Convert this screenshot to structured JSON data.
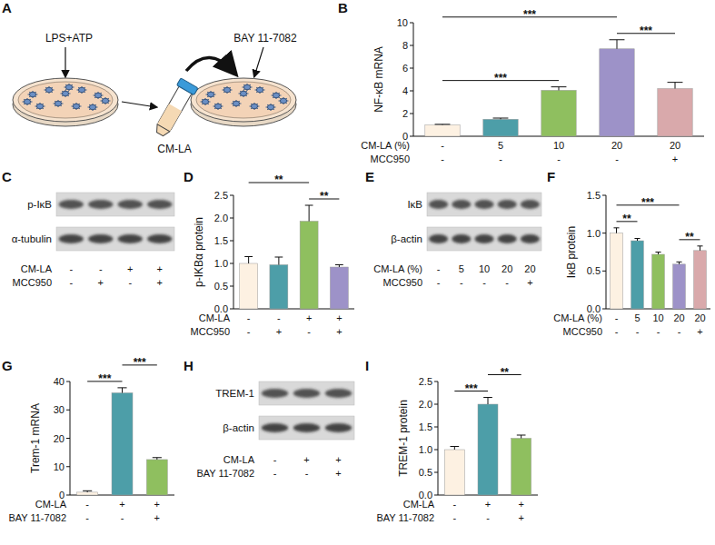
{
  "diagram": {
    "panel": "A",
    "labels": {
      "stimulus": "LPS+ATP",
      "medium": "CM-LA",
      "inhibitor": "BAY 11-7082"
    }
  },
  "blots": [
    {
      "panel": "C",
      "bands": [
        "p-IκB",
        "α-tubulin"
      ],
      "conditions": [
        {
          "name": "CM-LA",
          "labels": [
            "-",
            "-",
            "+",
            "+"
          ]
        },
        {
          "name": "MCC950",
          "labels": [
            "-",
            "+",
            "-",
            "+"
          ]
        }
      ]
    },
    {
      "panel": "E",
      "bands": [
        "IκB",
        "β-actin"
      ],
      "conditions": [
        {
          "name": "CM-LA (%)",
          "labels": [
            "-",
            "5",
            "10",
            "20",
            "20"
          ]
        },
        {
          "name": "MCC950",
          "labels": [
            "-",
            "-",
            "-",
            "-",
            "+"
          ]
        }
      ]
    },
    {
      "panel": "H",
      "bands": [
        "TREM-1",
        "β-actin"
      ],
      "conditions": [
        {
          "name": "CM-LA",
          "labels": [
            "-",
            "+",
            "+"
          ]
        },
        {
          "name": "BAY 11-7082",
          "labels": [
            "-",
            "-",
            "+"
          ]
        }
      ]
    }
  ],
  "chart_data": [
    {
      "panel": "B",
      "type": "bar",
      "y_label": "NF-κB mRNA",
      "ylim": [
        0,
        10
      ],
      "yticks": [
        0,
        2,
        4,
        6,
        8,
        10
      ],
      "values": [
        1.0,
        1.5,
        4.05,
        7.7,
        4.2
      ],
      "errors": [
        0.05,
        0.1,
        0.3,
        0.8,
        0.55
      ],
      "colors": [
        "#fdf1e2",
        "#4d9ea8",
        "#8fbf5f",
        "#9d92c8",
        "#d9a9ab"
      ],
      "x_rows": [
        {
          "name": "CM-LA (%)",
          "labels": [
            "-",
            "5",
            "10",
            "20",
            "20"
          ]
        },
        {
          "name": "MCC950",
          "labels": [
            "-",
            "-",
            "-",
            "-",
            "+"
          ]
        }
      ],
      "significance": [
        {
          "from": 0,
          "to": 2,
          "label": "***"
        },
        {
          "from": 3,
          "to": 4,
          "label": "***"
        },
        {
          "from": 0,
          "to": 3,
          "label": "***"
        }
      ]
    },
    {
      "panel": "D",
      "type": "bar",
      "y_label": "p-IKBα protein",
      "ylim": [
        0,
        2.5
      ],
      "yticks": [
        {
          "value": 0,
          "label": "0.0"
        },
        {
          "value": 0.5,
          "label": "0.5"
        },
        {
          "value": 1,
          "label": "1.0"
        },
        {
          "value": 1.5,
          "label": "1.5"
        },
        {
          "value": 2,
          "label": "2.0"
        },
        {
          "value": 2.5,
          "label": "2.5"
        }
      ],
      "values": [
        1.0,
        0.97,
        1.93,
        0.92
      ],
      "errors": [
        0.15,
        0.17,
        0.35,
        0.05
      ],
      "colors": [
        "#fdf1e2",
        "#4d9ea8",
        "#8fbf5f",
        "#9d92c8"
      ],
      "x_rows": [
        {
          "name": "CM-LA",
          "labels": [
            "-",
            "-",
            "+",
            "+"
          ]
        },
        {
          "name": "MCC950",
          "labels": [
            "-",
            "+",
            "-",
            "+"
          ]
        }
      ],
      "significance": [
        {
          "from": 2,
          "to": 3,
          "label": "**"
        },
        {
          "from": 0,
          "to": 2,
          "label": "**"
        }
      ]
    },
    {
      "panel": "F",
      "type": "bar",
      "y_label": "IκB protein",
      "ylim": [
        0,
        1.5
      ],
      "yticks": [
        {
          "value": 0,
          "label": "0.0"
        },
        {
          "value": 0.5,
          "label": "0.5"
        },
        {
          "value": 1,
          "label": "1.0"
        },
        {
          "value": 1.5,
          "label": "1.5"
        }
      ],
      "values": [
        1.0,
        0.9,
        0.72,
        0.59,
        0.77
      ],
      "errors": [
        0.07,
        0.03,
        0.03,
        0.03,
        0.06
      ],
      "colors": [
        "#fdf1e2",
        "#4d9ea8",
        "#8fbf5f",
        "#9d92c8",
        "#d9a9ab"
      ],
      "x_rows": [
        {
          "name": "CM-LA (%)",
          "labels": [
            "-",
            "5",
            "10",
            "20",
            "20"
          ]
        },
        {
          "name": "MCC950",
          "labels": [
            "-",
            "-",
            "-",
            "-",
            "+"
          ]
        }
      ],
      "significance": [
        {
          "from": 0,
          "to": 1,
          "label": "**"
        },
        {
          "from": 3,
          "to": 4,
          "label": "**"
        },
        {
          "from": 0,
          "to": 3,
          "label": "***"
        }
      ]
    },
    {
      "panel": "G",
      "type": "bar",
      "y_label": "Trem-1 mRNA",
      "ylim": [
        0,
        40
      ],
      "yticks": [
        0,
        10,
        20,
        30,
        40
      ],
      "values": [
        1.0,
        36.0,
        12.5
      ],
      "errors": [
        0.5,
        1.8,
        0.7
      ],
      "colors": [
        "#fdf1e2",
        "#4d9ea8",
        "#8fbf5f"
      ],
      "x_rows": [
        {
          "name": "CM-LA",
          "labels": [
            "-",
            "+",
            "+"
          ]
        },
        {
          "name": "BAY 11-7082",
          "labels": [
            "-",
            "-",
            "+"
          ]
        }
      ],
      "significance": [
        {
          "from": 0,
          "to": 1,
          "label": "***"
        },
        {
          "from": 1,
          "to": 2,
          "label": "***"
        }
      ]
    },
    {
      "panel": "I",
      "type": "bar",
      "y_label": "TREM-1 protein",
      "ylim": [
        0,
        2.5
      ],
      "yticks": [
        {
          "value": 0,
          "label": "0.0"
        },
        {
          "value": 0.5,
          "label": "0.5"
        },
        {
          "value": 1,
          "label": "1.0"
        },
        {
          "value": 1.5,
          "label": "1.5"
        },
        {
          "value": 2,
          "label": "2.0"
        },
        {
          "value": 2.5,
          "label": "2.5"
        }
      ],
      "values": [
        1.0,
        2.0,
        1.25
      ],
      "errors": [
        0.07,
        0.15,
        0.07
      ],
      "colors": [
        "#fdf1e2",
        "#4d9ea8",
        "#8fbf5f"
      ],
      "x_rows": [
        {
          "name": "CM-LA",
          "labels": [
            "-",
            "+",
            "+"
          ]
        },
        {
          "name": "BAY 11-7082",
          "labels": [
            "-",
            "-",
            "+"
          ]
        }
      ],
      "significance": [
        {
          "from": 0,
          "to": 1,
          "label": "***"
        },
        {
          "from": 1,
          "to": 2,
          "label": "**"
        }
      ]
    }
  ]
}
